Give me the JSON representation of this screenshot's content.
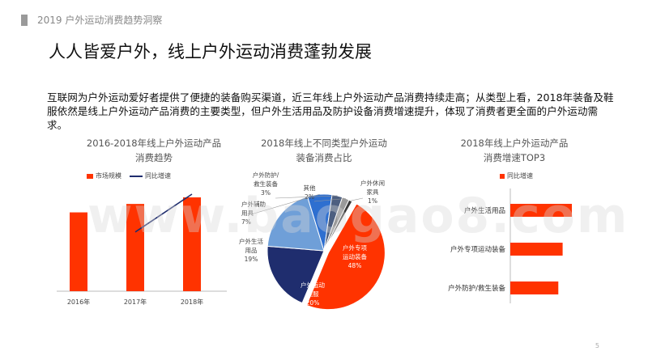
{
  "header": {
    "text": "2019 户外运动消费趋势洞察"
  },
  "headline": "人人皆爱户外，线上户外运动消费蓬勃发展",
  "body_text": "互联网为户外运动爱好者提供了便捷的装备购买渠道，近三年线上户外运动产品消费持续走高；从类型上看，2018年装备及鞋服依然是线上户外运动产品消费的主要类型，但户外生活用品及防护设备消费增速提升，体现了消费者更全面的户外运动需求。",
  "watermark": "www.baogao8.com",
  "page_number": "5",
  "colors": {
    "red": "#ff3300",
    "navy": "#1f2d6e",
    "blue": "#2e6fd0",
    "lightblue": "#6f9fd8",
    "gray": "#9a9a9a"
  },
  "chart1": {
    "title_line1": "2016-2018年线上户外运动产品",
    "title_line2": "消费趋势",
    "legend": {
      "bar": "市场规模",
      "line": "同比增速"
    }
  },
  "chart2": {
    "title_line1": "2018年线上不同类型户外运动",
    "title_line2": "装备消费占比"
  },
  "chart3": {
    "title_line1": "2018年线上户外运动产品",
    "title_line2": "消费增速TOP3",
    "legend": {
      "bar": "同比增速"
    }
  },
  "chart_data": [
    {
      "type": "bar",
      "categories": [
        "2016年",
        "2017年",
        "2018年"
      ],
      "series": [
        {
          "name": "市场规模",
          "values": [
            0.84,
            0.93,
            1.0
          ]
        },
        {
          "name": "同比增速",
          "values": [
            null,
            0.4,
            1.0
          ]
        }
      ]
    },
    {
      "type": "pie",
      "labels": [
        [
          "户外专项",
          "运动装备",
          "48%"
        ],
        [
          "户外运动",
          "鞋服",
          "20%"
        ],
        [
          "户外生活",
          "用品",
          "19%"
        ],
        [
          "户外辅助",
          "用具",
          "7%"
        ],
        [
          "户外防护/",
          "救生装备",
          "3%"
        ],
        [
          "其他",
          "2%"
        ],
        [
          "户外休闲",
          "家具",
          "1%"
        ]
      ],
      "values": [
        48,
        20,
        19,
        7,
        3,
        2,
        1
      ]
    },
    {
      "type": "bar",
      "orientation": "horizontal",
      "categories": [
        "户外生活用品",
        "户外专项运动装备",
        "户外防护/救生装备"
      ],
      "series": [
        {
          "name": "同比增速",
          "values": [
            1.0,
            0.85,
            0.78
          ]
        }
      ]
    }
  ]
}
